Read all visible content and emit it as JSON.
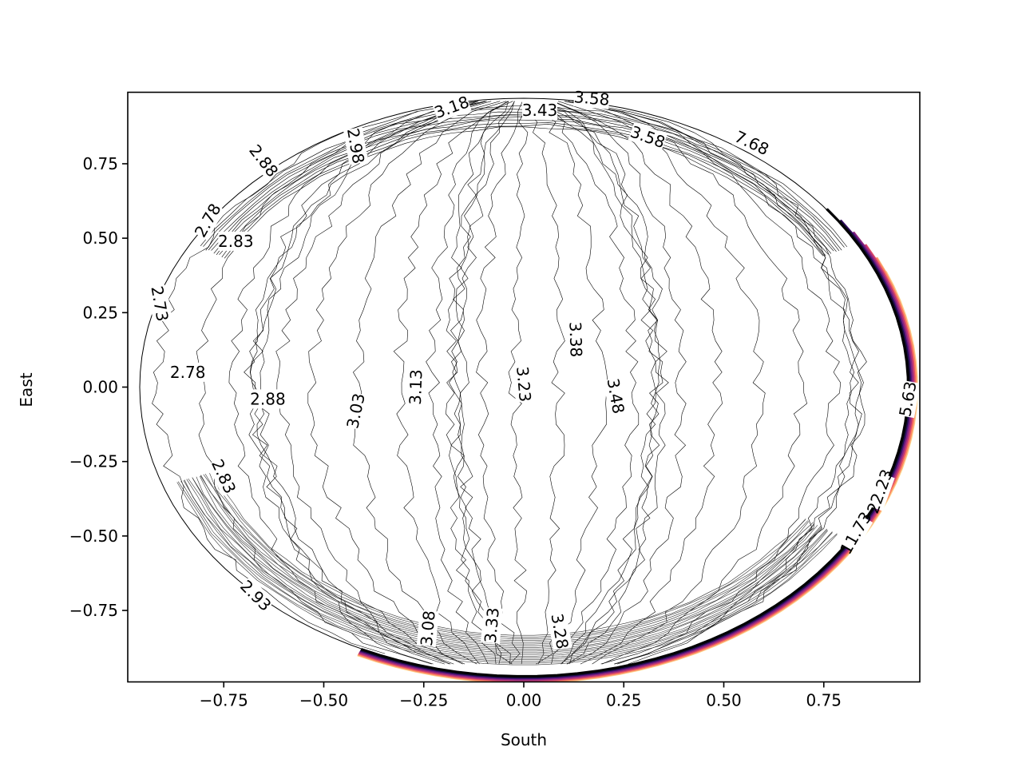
{
  "chart_data": {
    "type": "contour",
    "xlabel": "South",
    "ylabel": "East",
    "xlim": [
      -0.99,
      0.99
    ],
    "ylim": [
      -0.99,
      0.99
    ],
    "xticks": [
      -0.75,
      -0.5,
      -0.25,
      0.0,
      0.25,
      0.5,
      0.75
    ],
    "xtick_labels": [
      "−0.75",
      "−0.50",
      "−0.25",
      "0.00",
      "0.25",
      "0.50",
      "0.75"
    ],
    "yticks": [
      -0.75,
      -0.5,
      -0.25,
      0.0,
      0.25,
      0.5,
      0.75
    ],
    "ytick_labels": [
      "−0.75",
      "−0.50",
      "−0.25",
      "0.00",
      "0.25",
      "0.50",
      "0.75"
    ],
    "grid": false,
    "colormap": "magma",
    "domain": "unit disk",
    "contour_labels": [
      {
        "text": "3.18",
        "x": -0.18,
        "y": 0.94,
        "angle": -20
      },
      {
        "text": "3.43",
        "x": 0.04,
        "y": 0.93,
        "angle": 0
      },
      {
        "text": "3.58",
        "x": 0.17,
        "y": 0.97,
        "angle": 5
      },
      {
        "text": "3.58",
        "x": 0.31,
        "y": 0.84,
        "angle": 20
      },
      {
        "text": "7.68",
        "x": 0.57,
        "y": 0.82,
        "angle": 25
      },
      {
        "text": "2.88",
        "x": -0.65,
        "y": 0.76,
        "angle": 52
      },
      {
        "text": "2.98",
        "x": -0.42,
        "y": 0.81,
        "angle": 80
      },
      {
        "text": "2.78",
        "x": -0.79,
        "y": 0.56,
        "angle": -60
      },
      {
        "text": "2.83",
        "x": -0.72,
        "y": 0.49,
        "angle": 0
      },
      {
        "text": "2.73",
        "x": -0.91,
        "y": 0.28,
        "angle": 80
      },
      {
        "text": "2.78",
        "x": -0.84,
        "y": 0.05,
        "angle": 0
      },
      {
        "text": "2.88",
        "x": -0.64,
        "y": -0.04,
        "angle": 0
      },
      {
        "text": "3.03",
        "x": -0.42,
        "y": -0.08,
        "angle": -78
      },
      {
        "text": "3.13",
        "x": -0.27,
        "y": 0.0,
        "angle": -88
      },
      {
        "text": "3.23",
        "x": 0.0,
        "y": 0.01,
        "angle": 85
      },
      {
        "text": "3.38",
        "x": 0.13,
        "y": 0.16,
        "angle": 88
      },
      {
        "text": "3.48",
        "x": 0.23,
        "y": -0.03,
        "angle": 80
      },
      {
        "text": "5.63",
        "x": 0.96,
        "y": -0.04,
        "angle": -80
      },
      {
        "text": "22.23",
        "x": 0.89,
        "y": -0.35,
        "angle": -70
      },
      {
        "text": "11.73",
        "x": 0.83,
        "y": -0.49,
        "angle": -60
      },
      {
        "text": "2.83",
        "x": -0.75,
        "y": -0.3,
        "angle": 65
      },
      {
        "text": "2.93",
        "x": -0.67,
        "y": -0.7,
        "angle": 45
      },
      {
        "text": "3.08",
        "x": -0.24,
        "y": -0.81,
        "angle": -85
      },
      {
        "text": "3.33",
        "x": -0.08,
        "y": -0.8,
        "angle": -85
      },
      {
        "text": "3.28",
        "x": 0.09,
        "y": -0.82,
        "angle": 80
      }
    ]
  }
}
